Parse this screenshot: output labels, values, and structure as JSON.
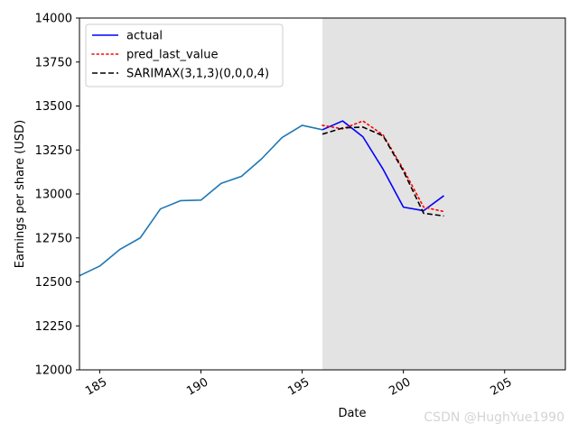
{
  "chart_data": {
    "type": "line",
    "title": "",
    "xlabel": "Date",
    "ylabel": "Earnings per share (USD)",
    "xlim": [
      184,
      208
    ],
    "ylim": [
      12000,
      14000
    ],
    "xticks": [
      185,
      190,
      195,
      200,
      205
    ],
    "yticks": [
      12000,
      12250,
      12500,
      12750,
      13000,
      13250,
      13500,
      13750,
      14000
    ],
    "xtick_labels": [
      "185",
      "190",
      "195",
      "200",
      "205"
    ],
    "ytick_labels": [
      "12000",
      "12250",
      "12500",
      "12750",
      "13000",
      "13250",
      "13500",
      "13750",
      "14000"
    ],
    "shaded_region": {
      "x_start": 196,
      "x_end": 208,
      "color": "#808080"
    },
    "legend_position": "top-left",
    "series": [
      {
        "name": "history",
        "in_legend": false,
        "color": "#1f77b4",
        "style": "solid",
        "x": [
          184,
          185,
          186,
          187,
          188,
          189,
          190,
          191,
          192,
          193,
          194,
          195,
          196
        ],
        "values": [
          12535,
          12590,
          12685,
          12750,
          12915,
          12962,
          12965,
          13060,
          13100,
          13200,
          13320,
          13390,
          13365
        ]
      },
      {
        "name": "actual",
        "in_legend": true,
        "color": "#0000ff",
        "style": "solid",
        "x": [
          196,
          197,
          198,
          199,
          200,
          201,
          202
        ],
        "values": [
          13365,
          13415,
          13325,
          13140,
          12925,
          12905,
          12990
        ]
      },
      {
        "name": "pred_last_value",
        "in_legend": true,
        "color": "#ff0000",
        "style": "dotted",
        "x": [
          196,
          197,
          198,
          199,
          200,
          201,
          202
        ],
        "values": [
          13390,
          13370,
          13415,
          13335,
          13140,
          12925,
          12900
        ]
      },
      {
        "name": "SARIMAX(3,1,3)(0,0,0,4)",
        "in_legend": true,
        "color": "#000000",
        "style": "dashed",
        "x": [
          196,
          197,
          198,
          199,
          200,
          201,
          202
        ],
        "values": [
          13340,
          13375,
          13380,
          13330,
          13130,
          12890,
          12875
        ]
      }
    ],
    "watermark": "CSDN @HughYue1990"
  }
}
